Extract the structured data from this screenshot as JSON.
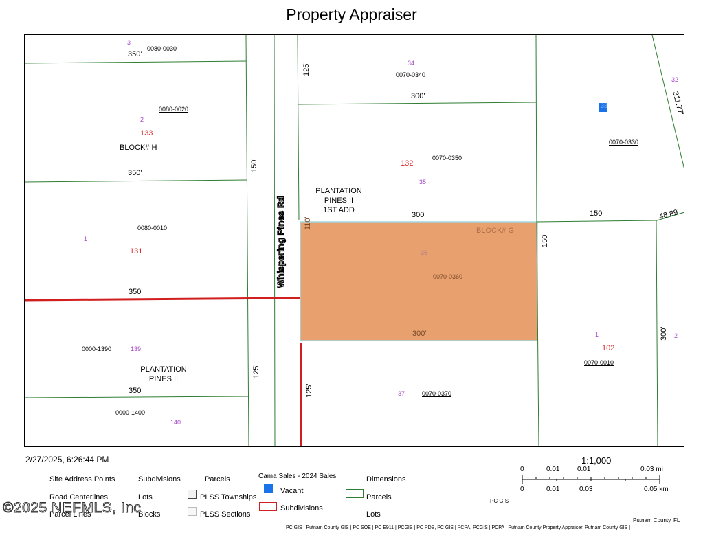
{
  "title": "Property Appraiser",
  "map": {
    "road_name": "Whispering Pines Rd",
    "parcels": [
      "0080-0030",
      "0080-0020",
      "0080-0010",
      "0000-1390",
      "0000-1400",
      "0070-0340",
      "0070-0350",
      "0070-0360",
      "0070-0370",
      "0070-0330",
      "0070-0010"
    ],
    "dimensions": [
      "350'",
      "350'",
      "350'",
      "350'",
      "150'",
      "125'",
      "125'",
      "300'",
      "300'",
      "300'",
      "125'",
      "110'",
      "150'",
      "150'",
      "311.77'",
      "48.89'",
      "300'"
    ],
    "address_points": [
      "3",
      "2",
      "1",
      "139",
      "140",
      "34",
      "35",
      "36",
      "37",
      "32",
      "1",
      "2",
      "33"
    ],
    "lots": [
      "133",
      "131",
      "132",
      "102"
    ],
    "blocks": [
      "BLOCK# H",
      "BLOCK# G"
    ],
    "subdivisions": [
      "PLANTATION\nPINES II\n1ST ADD",
      "PLANTATION\nPINES II"
    ],
    "colors": {
      "parcel_line": "#2e7d32",
      "subdivision_line": "#d11f1f",
      "selected_fill": "#e8a06e",
      "vacant": "#1a73e8",
      "selected_outline": "#9fd8e0"
    }
  },
  "footer": {
    "timestamp": "2/27/2025, 6:26:44 PM",
    "scale": "1:1,000",
    "scale_mi": [
      "0",
      "0.01",
      "0.01",
      "0.03 mi"
    ],
    "scale_km": [
      "0",
      "0.01",
      "0.03",
      "0.05 km"
    ],
    "pcgis": "PC GIS",
    "county": "Putnam County, FL",
    "credits": "PC GIS | Putnam County GIS | PC SOE | PC E911 | PCGIS | PC PDS, PC GIS | PCPA, PCGIS | PCPA | Putnam County Property Appraiser, Putnam County GIS |",
    "watermark": "©2025 NEFMLS, Inc"
  },
  "legend": {
    "site_address_points": "Site Address Points",
    "road_centerlines": "Road Centerlines",
    "parcel_lines": "Parcel Lines",
    "subdivisions": "Subdivisions",
    "lots": "Lots",
    "blocks": "Blocks",
    "parcels": "Parcels",
    "plss_townships": "PLSS Townships",
    "plss_sections": "PLSS Sections",
    "cama_sales": "Cama Sales - 2024 Sales",
    "vacant": "Vacant",
    "subdivisions2": "Subdivisions",
    "dimensions": "Dimensions",
    "parcels2": "Parcels",
    "lots2": "Lots"
  }
}
